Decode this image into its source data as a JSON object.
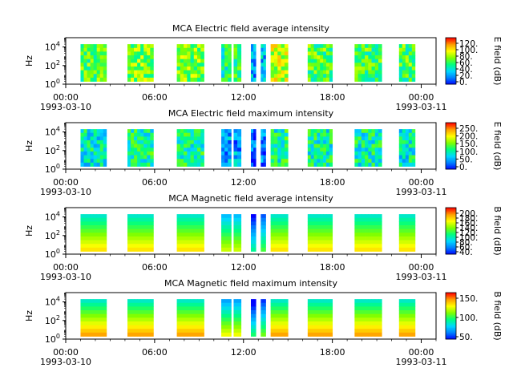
{
  "figure": {
    "background": "#ffffff"
  },
  "colormap": [
    "#0000ff",
    "#0080ff",
    "#00d8ff",
    "#00ff80",
    "#80ff00",
    "#ffff00",
    "#ffa000",
    "#ff0000"
  ],
  "chart_data": [
    {
      "type": "heatmap",
      "title": "MCA  Electric field average intensity",
      "ylabel": "Hz",
      "yscale": "log",
      "ylim": [
        1,
        100000
      ],
      "y_ticks": [
        {
          "base": "10",
          "exp": "0"
        },
        {
          "base": "10",
          "exp": "2"
        },
        {
          "base": "10",
          "exp": "4"
        }
      ],
      "x_range": [
        "1993-03-10 00:00",
        "1993-03-11 00:00"
      ],
      "x_ticks": [
        "00:00",
        "06:00",
        "12:00",
        "18:00",
        "00:00"
      ],
      "x_date_labels": [
        "1993-03-10",
        "1993-03-11"
      ],
      "colorbar": {
        "label": "E field (dB)",
        "ticks": [
          "0.",
          "20.",
          "40.",
          "60.",
          "80.",
          "100.",
          "120."
        ]
      },
      "data_blocks": [
        {
          "start": "01:00",
          "end": "02:45",
          "level": 0.5,
          "freq_range": [
            2,
            20000
          ]
        },
        {
          "start": "04:10",
          "end": "05:55",
          "level": 0.55,
          "freq_range": [
            2,
            20000
          ]
        },
        {
          "start": "07:30",
          "end": "09:20",
          "level": 0.55,
          "freq_range": [
            2,
            20000
          ]
        },
        {
          "start": "10:30",
          "end": "11:10",
          "level": 0.4,
          "freq_range": [
            2,
            20000
          ]
        },
        {
          "start": "11:20",
          "end": "11:50",
          "level": 0.45,
          "freq_range": [
            2,
            20000
          ]
        },
        {
          "start": "12:30",
          "end": "12:50",
          "level": 0.2,
          "freq_range": [
            2,
            20000
          ]
        },
        {
          "start": "13:10",
          "end": "13:30",
          "level": 0.25,
          "freq_range": [
            2,
            20000
          ]
        },
        {
          "start": "13:50",
          "end": "15:00",
          "level": 0.65,
          "freq_range": [
            2,
            20000
          ]
        },
        {
          "start": "16:20",
          "end": "18:00",
          "level": 0.5,
          "freq_range": [
            2,
            20000
          ]
        },
        {
          "start": "19:30",
          "end": "21:20",
          "level": 0.5,
          "freq_range": [
            2,
            20000
          ]
        },
        {
          "start": "22:30",
          "end": "23:35",
          "level": 0.5,
          "freq_range": [
            2,
            20000
          ]
        }
      ]
    },
    {
      "type": "heatmap",
      "title": "MCA  Electric field maximum intensity",
      "ylabel": "Hz",
      "yscale": "log",
      "ylim": [
        1,
        100000
      ],
      "y_ticks": [
        {
          "base": "10",
          "exp": "0"
        },
        {
          "base": "10",
          "exp": "2"
        },
        {
          "base": "10",
          "exp": "4"
        }
      ],
      "x_range": [
        "1993-03-10 00:00",
        "1993-03-11 00:00"
      ],
      "x_ticks": [
        "00:00",
        "06:00",
        "12:00",
        "18:00",
        "00:00"
      ],
      "x_date_labels": [
        "1993-03-10",
        "1993-03-11"
      ],
      "colorbar": {
        "label": "E field (dB)",
        "ticks": [
          "0.",
          "50.",
          "100.",
          "150.",
          "200.",
          "250."
        ]
      },
      "data_blocks": [
        {
          "start": "01:00",
          "end": "02:45",
          "level": 0.35,
          "freq_range": [
            2,
            20000
          ]
        },
        {
          "start": "04:10",
          "end": "05:55",
          "level": 0.4,
          "freq_range": [
            2,
            20000
          ]
        },
        {
          "start": "07:30",
          "end": "09:20",
          "level": 0.4,
          "freq_range": [
            2,
            20000
          ]
        },
        {
          "start": "10:30",
          "end": "11:10",
          "level": 0.2,
          "freq_range": [
            2,
            20000
          ]
        },
        {
          "start": "11:20",
          "end": "11:50",
          "level": 0.2,
          "freq_range": [
            2,
            20000
          ]
        },
        {
          "start": "12:30",
          "end": "12:50",
          "level": 0.1,
          "freq_range": [
            2,
            20000
          ]
        },
        {
          "start": "13:10",
          "end": "13:30",
          "level": 0.12,
          "freq_range": [
            2,
            20000
          ]
        },
        {
          "start": "13:50",
          "end": "15:00",
          "level": 0.4,
          "freq_range": [
            2,
            20000
          ]
        },
        {
          "start": "16:20",
          "end": "18:00",
          "level": 0.38,
          "freq_range": [
            2,
            20000
          ]
        },
        {
          "start": "19:30",
          "end": "21:20",
          "level": 0.38,
          "freq_range": [
            2,
            20000
          ]
        },
        {
          "start": "22:30",
          "end": "23:35",
          "level": 0.35,
          "freq_range": [
            2,
            20000
          ]
        }
      ]
    },
    {
      "type": "heatmap",
      "title": "MCA  Magnetic field average intensity",
      "ylabel": "Hz",
      "yscale": "log",
      "ylim": [
        1,
        100000
      ],
      "y_ticks": [
        {
          "base": "10",
          "exp": "0"
        },
        {
          "base": "10",
          "exp": "2"
        },
        {
          "base": "10",
          "exp": "4"
        }
      ],
      "x_range": [
        "1993-03-10 00:00",
        "1993-03-11 00:00"
      ],
      "x_ticks": [
        "00:00",
        "06:00",
        "12:00",
        "18:00",
        "00:00"
      ],
      "x_date_labels": [
        "1993-03-10",
        "1993-03-11"
      ],
      "colorbar": {
        "label": "B field (dB)",
        "ticks": [
          "40.",
          "60.",
          "80.",
          "100.",
          "120.",
          "140.",
          "160.",
          "180.",
          "200."
        ]
      },
      "data_blocks": [
        {
          "start": "01:00",
          "end": "02:45",
          "level": 0.55,
          "freq_range": [
            2,
            20000
          ]
        },
        {
          "start": "04:10",
          "end": "05:55",
          "level": 0.55,
          "freq_range": [
            2,
            20000
          ]
        },
        {
          "start": "07:30",
          "end": "09:20",
          "level": 0.55,
          "freq_range": [
            2,
            20000
          ]
        },
        {
          "start": "10:30",
          "end": "11:10",
          "level": 0.45,
          "freq_range": [
            2,
            20000
          ]
        },
        {
          "start": "11:20",
          "end": "11:50",
          "level": 0.45,
          "freq_range": [
            2,
            20000
          ]
        },
        {
          "start": "12:30",
          "end": "12:50",
          "level": 0.2,
          "freq_range": [
            2,
            20000
          ]
        },
        {
          "start": "13:10",
          "end": "13:30",
          "level": 0.3,
          "freq_range": [
            2,
            20000
          ]
        },
        {
          "start": "13:50",
          "end": "15:00",
          "level": 0.55,
          "freq_range": [
            2,
            20000
          ]
        },
        {
          "start": "16:20",
          "end": "18:00",
          "level": 0.55,
          "freq_range": [
            2,
            20000
          ]
        },
        {
          "start": "19:30",
          "end": "21:20",
          "level": 0.55,
          "freq_range": [
            2,
            20000
          ]
        },
        {
          "start": "22:30",
          "end": "23:35",
          "level": 0.55,
          "freq_range": [
            2,
            20000
          ]
        }
      ]
    },
    {
      "type": "heatmap",
      "title": "MCA  Magnetic field maximum intensity",
      "ylabel": "Hz",
      "yscale": "log",
      "ylim": [
        1,
        100000
      ],
      "y_ticks": [
        {
          "base": "10",
          "exp": "0"
        },
        {
          "base": "10",
          "exp": "2"
        },
        {
          "base": "10",
          "exp": "4"
        }
      ],
      "x_range": [
        "1993-03-10 00:00",
        "1993-03-11 00:00"
      ],
      "x_ticks": [
        "00:00",
        "06:00",
        "12:00",
        "18:00",
        "00:00"
      ],
      "x_date_labels": [
        "1993-03-10",
        "1993-03-11"
      ],
      "colorbar": {
        "label": "B field (dB)",
        "ticks": [
          "50.",
          "100.",
          "150."
        ]
      },
      "data_blocks": [
        {
          "start": "01:00",
          "end": "02:45",
          "level": 0.6,
          "freq_range": [
            2,
            20000
          ]
        },
        {
          "start": "04:10",
          "end": "05:55",
          "level": 0.6,
          "freq_range": [
            2,
            20000
          ]
        },
        {
          "start": "07:30",
          "end": "09:20",
          "level": 0.6,
          "freq_range": [
            2,
            20000
          ]
        },
        {
          "start": "10:30",
          "end": "11:10",
          "level": 0.45,
          "freq_range": [
            2,
            20000
          ]
        },
        {
          "start": "11:20",
          "end": "11:50",
          "level": 0.45,
          "freq_range": [
            2,
            20000
          ]
        },
        {
          "start": "12:30",
          "end": "12:50",
          "level": 0.2,
          "freq_range": [
            2,
            20000
          ]
        },
        {
          "start": "13:10",
          "end": "13:30",
          "level": 0.3,
          "freq_range": [
            2,
            20000
          ]
        },
        {
          "start": "13:50",
          "end": "15:00",
          "level": 0.6,
          "freq_range": [
            2,
            20000
          ]
        },
        {
          "start": "16:20",
          "end": "18:00",
          "level": 0.6,
          "freq_range": [
            2,
            20000
          ]
        },
        {
          "start": "19:30",
          "end": "21:20",
          "level": 0.6,
          "freq_range": [
            2,
            20000
          ]
        },
        {
          "start": "22:30",
          "end": "23:35",
          "level": 0.6,
          "freq_range": [
            2,
            20000
          ]
        }
      ]
    }
  ]
}
